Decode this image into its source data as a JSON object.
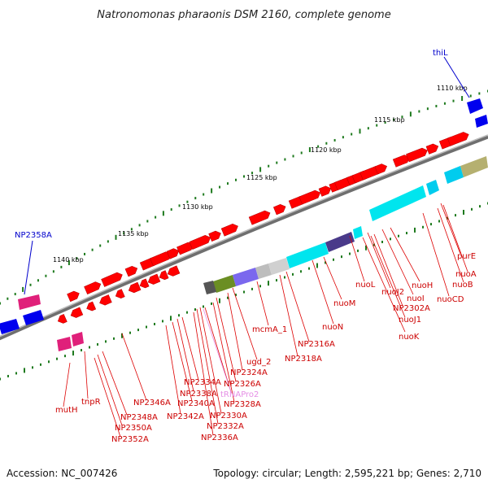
{
  "title": "Natronomonas pharaonis DSM 2160, complete genome",
  "footer": {
    "accession": "Accession: NC_007426",
    "summary": "Topology: circular; Length: 2,595,221 bp; Genes: 2,710"
  },
  "colors": {
    "backbone": "#7f7f7f",
    "tick": "#1e7a1e",
    "gene_plus": "#ff0000",
    "gene_minus": "#ff0000",
    "rna": "#e0a0e0",
    "blue_label": "#0000cc",
    "red_label": "#cc0000"
  },
  "scale_labels": [
    {
      "text": "1110 kbp"
    },
    {
      "text": "1115 kbp"
    },
    {
      "text": "1120 kbp"
    },
    {
      "text": "1125 kbp"
    },
    {
      "text": "1130 kbp"
    },
    {
      "text": "1135 kbp"
    },
    {
      "text": "1140 kbp"
    }
  ],
  "blue_labels": [
    {
      "text": "thiL"
    },
    {
      "text": "NP2358A"
    }
  ],
  "gene_labels": [
    {
      "text": "purE",
      "color": "red"
    },
    {
      "text": "nuoA",
      "color": "red"
    },
    {
      "text": "nuoB",
      "color": "red"
    },
    {
      "text": "nuoCD",
      "color": "red"
    },
    {
      "text": "nuoH",
      "color": "red"
    },
    {
      "text": "nuoI",
      "color": "red"
    },
    {
      "text": "nuoJ2",
      "color": "red"
    },
    {
      "text": "nuoL",
      "color": "red"
    },
    {
      "text": "NP2302A",
      "color": "red"
    },
    {
      "text": "nuoJ1",
      "color": "red"
    },
    {
      "text": "nuoK",
      "color": "red"
    },
    {
      "text": "nuoM",
      "color": "red"
    },
    {
      "text": "nuoN",
      "color": "red"
    },
    {
      "text": "mcmA_1",
      "color": "red"
    },
    {
      "text": "NP2316A",
      "color": "red"
    },
    {
      "text": "NP2318A",
      "color": "red"
    },
    {
      "text": "ugd_2",
      "color": "red"
    },
    {
      "text": "NP2324A",
      "color": "red"
    },
    {
      "text": "NP2334A",
      "color": "red"
    },
    {
      "text": "NP2326A",
      "color": "red"
    },
    {
      "text": "tRNAPro2",
      "color": "pink"
    },
    {
      "text": "NP2338A",
      "color": "red"
    },
    {
      "text": "NP2328A",
      "color": "red"
    },
    {
      "text": "NP2340A",
      "color": "red"
    },
    {
      "text": "NP2330A",
      "color": "red"
    },
    {
      "text": "NP2346A",
      "color": "red"
    },
    {
      "text": "NP2342A",
      "color": "red"
    },
    {
      "text": "NP2332A",
      "color": "red"
    },
    {
      "text": "NP2336A",
      "color": "red"
    },
    {
      "text": "NP2348A",
      "color": "red"
    },
    {
      "text": "NP2350A",
      "color": "red"
    },
    {
      "text": "NP2352A",
      "color": "red"
    },
    {
      "text": "tnpR",
      "color": "red"
    },
    {
      "text": "mutH",
      "color": "red"
    }
  ]
}
